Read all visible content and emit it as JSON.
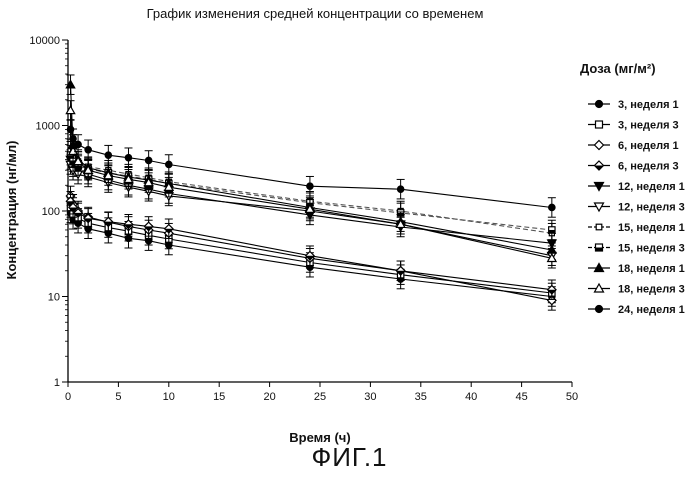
{
  "figure_label": "ФИГ.1",
  "chart_data": {
    "type": "line",
    "title": "График изменения средней концентрации со временем",
    "xlabel": "Время (ч)",
    "ylabel": "Концентрация (нг/мл)",
    "xlim": [
      0,
      50
    ],
    "ylim": [
      1,
      10000
    ],
    "yscale": "log",
    "grid": false,
    "x_ticks": [
      "0",
      "5",
      "10",
      "15",
      "20",
      "25",
      "30",
      "35",
      "40",
      "45",
      "50"
    ],
    "y_ticks": [
      "1",
      "10",
      "100",
      "1000",
      "10000"
    ],
    "legend_title": "Доза (мг/м²)",
    "legend_position": "right",
    "series": [
      {
        "name": "3, неделя 1",
        "marker": "circle-filled",
        "dash": "solid",
        "x": [
          0.25,
          0.5,
          1,
          2,
          4,
          6,
          8,
          10,
          24,
          33,
          48
        ],
        "y": [
          95,
          80,
          72,
          62,
          55,
          48,
          45,
          40,
          22,
          16,
          10
        ]
      },
      {
        "name": "3, неделя 3",
        "marker": "square-open",
        "dash": "solid",
        "x": [
          0.25,
          0.5,
          1,
          2,
          4,
          6,
          8,
          10,
          24,
          33,
          48
        ],
        "y": [
          110,
          92,
          82,
          72,
          64,
          58,
          52,
          47,
          25,
          18,
          11
        ]
      },
      {
        "name": "6, неделя 1",
        "marker": "diamond-open",
        "dash": "solid",
        "x": [
          0.25,
          0.5,
          1,
          2,
          4,
          6,
          8,
          10,
          24,
          33,
          48
        ],
        "y": [
          150,
          120,
          100,
          85,
          74,
          66,
          60,
          55,
          28,
          20,
          9
        ]
      },
      {
        "name": "6, неделя 3",
        "marker": "diamond-half",
        "dash": "solid",
        "x": [
          0.25,
          0.5,
          1,
          2,
          4,
          6,
          8,
          10,
          24,
          33,
          48
        ],
        "y": [
          130,
          110,
          95,
          82,
          75,
          70,
          66,
          62,
          30,
          20,
          12
        ]
      },
      {
        "name": "12, неделя 1",
        "marker": "triangle-down-filled",
        "dash": "solid",
        "x": [
          0.25,
          0.5,
          1,
          2,
          4,
          6,
          8,
          10,
          24,
          33,
          48
        ],
        "y": [
          400,
          330,
          300,
          270,
          230,
          200,
          180,
          160,
          90,
          65,
          42
        ]
      },
      {
        "name": "12, неделя 3",
        "marker": "triangle-down-open",
        "dash": "solid",
        "x": [
          0.25,
          0.5,
          1,
          2,
          4,
          6,
          8,
          10,
          24,
          33,
          48
        ],
        "y": [
          350,
          300,
          270,
          250,
          215,
          190,
          170,
          150,
          100,
          70,
          30
        ]
      },
      {
        "name": "15, неделя 1",
        "marker": "square-open-small",
        "dash": "dashed",
        "x": [
          0.25,
          0.5,
          1,
          2,
          4,
          6,
          8,
          10,
          24,
          33,
          48
        ],
        "y": [
          500,
          420,
          380,
          330,
          300,
          270,
          245,
          220,
          130,
          100,
          55
        ]
      },
      {
        "name": "15, неделя 3",
        "marker": "square-half",
        "dash": "dashed",
        "x": [
          0.25,
          0.5,
          1,
          2,
          4,
          6,
          8,
          10,
          24,
          33,
          48
        ],
        "y": [
          450,
          380,
          340,
          310,
          280,
          255,
          235,
          210,
          125,
          95,
          60
        ]
      },
      {
        "name": "18, неделя 1",
        "marker": "triangle-up-filled",
        "dash": "solid",
        "x": [
          0.25,
          0.5,
          1,
          2,
          4,
          6,
          8,
          10,
          24,
          33,
          48
        ],
        "y": [
          3000,
          600,
          400,
          320,
          280,
          250,
          230,
          210,
          110,
          75,
          35
        ]
      },
      {
        "name": "18, неделя 3",
        "marker": "triangle-up-open",
        "dash": "solid",
        "x": [
          0.25,
          0.5,
          1,
          2,
          4,
          6,
          8,
          10,
          24,
          33,
          48
        ],
        "y": [
          1500,
          500,
          380,
          300,
          260,
          235,
          215,
          190,
          105,
          70,
          28
        ]
      },
      {
        "name": "24, неделя 1",
        "marker": "circle-filled",
        "dash": "solid",
        "x": [
          0.25,
          0.5,
          1,
          2,
          4,
          6,
          8,
          10,
          24,
          33,
          48
        ],
        "y": [
          900,
          700,
          600,
          520,
          450,
          420,
          390,
          350,
          195,
          180,
          110
        ]
      }
    ]
  }
}
